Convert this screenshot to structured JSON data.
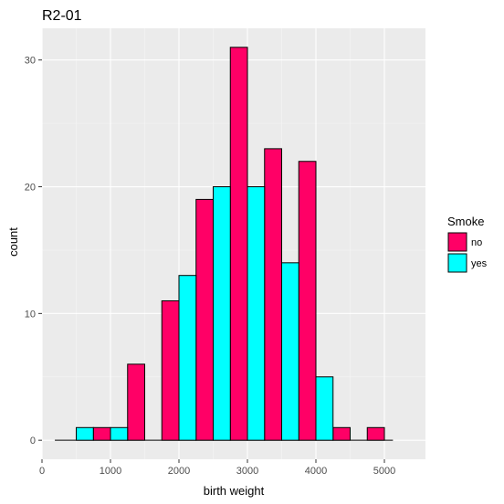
{
  "chart_data": {
    "type": "bar",
    "title": "R2-01",
    "xlabel": "birth weight",
    "ylabel": "count",
    "bin_width": 375,
    "x_ticks": [
      0,
      1000,
      2000,
      3000,
      4000,
      5000
    ],
    "x_tick_labels": [
      "0",
      "1000",
      "2000",
      "3000",
      "4000",
      "5000"
    ],
    "y_ticks": [
      0,
      10,
      20,
      30
    ],
    "y_tick_labels": [
      "0",
      "10",
      "20",
      "30"
    ],
    "xlim": [
      0,
      5600
    ],
    "ylim": [
      -1.5,
      32.5
    ],
    "grid": true,
    "legend": {
      "title": "Smoke",
      "position": "right"
    },
    "series": [
      {
        "name": "no",
        "color": "#FF0066",
        "bins": [
          {
            "x_start": 750,
            "x_end": 1000,
            "count": 1
          },
          {
            "x_start": 1250,
            "x_end": 1500,
            "count": 6
          },
          {
            "x_start": 1750,
            "x_end": 2000,
            "count": 11
          },
          {
            "x_start": 2250,
            "x_end": 2500,
            "count": 19
          },
          {
            "x_start": 2750,
            "x_end": 3000,
            "count": 31
          },
          {
            "x_start": 3250,
            "x_end": 3500,
            "count": 23
          },
          {
            "x_start": 3750,
            "x_end": 4000,
            "count": 22
          },
          {
            "x_start": 4250,
            "x_end": 4500,
            "count": 1
          },
          {
            "x_start": 4750,
            "x_end": 5000,
            "count": 1
          }
        ]
      },
      {
        "name": "yes",
        "color": "#00FFFF",
        "bins": [
          {
            "x_start": 500,
            "x_end": 750,
            "count": 1
          },
          {
            "x_start": 1000,
            "x_end": 1250,
            "count": 1
          },
          {
            "x_start": 2000,
            "x_end": 2250,
            "count": 13
          },
          {
            "x_start": 2500,
            "x_end": 2750,
            "count": 20
          },
          {
            "x_start": 3000,
            "x_end": 3250,
            "count": 20
          },
          {
            "x_start": 3500,
            "x_end": 3750,
            "count": 14
          },
          {
            "x_start": 4000,
            "x_end": 4250,
            "count": 5
          }
        ]
      }
    ]
  },
  "colors": {
    "panel_background": "#EBEBEB",
    "grid_major": "#FFFFFF",
    "grid_minor": "#F5F5F5",
    "bar_outline": "#000000"
  }
}
